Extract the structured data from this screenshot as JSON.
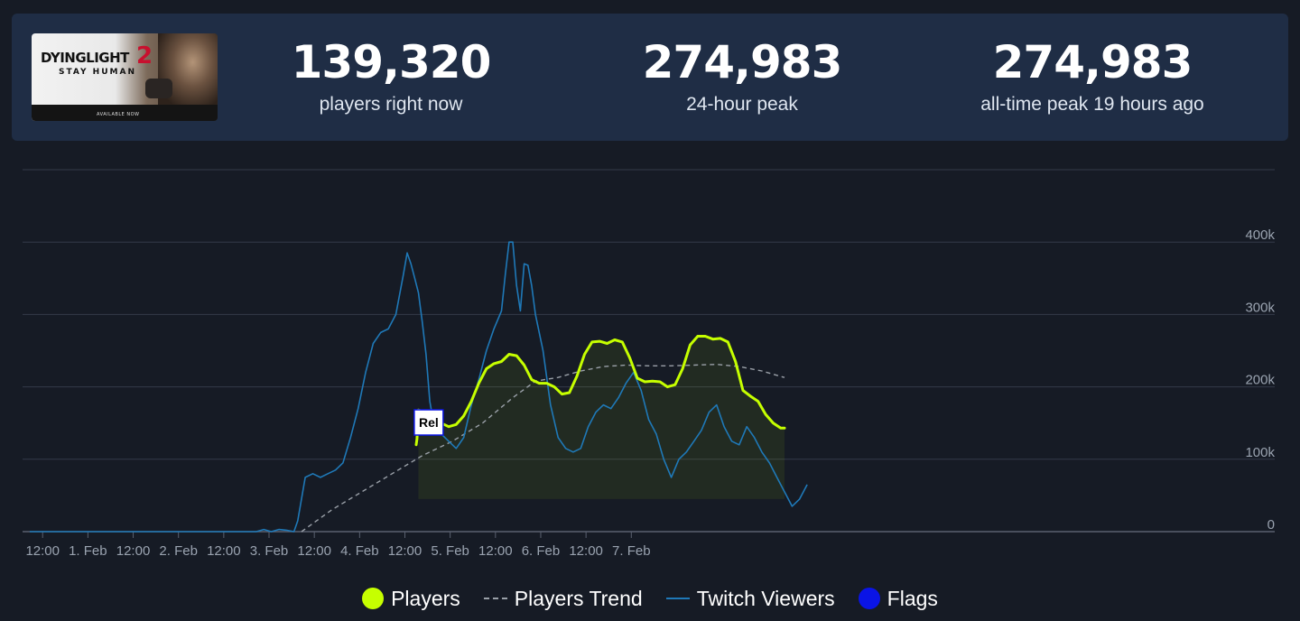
{
  "header": {
    "logo": {
      "title": "DYINGLIGHT",
      "number": "2",
      "subtitle": "STAY HUMAN",
      "availability": "AVAILABLE NOW"
    },
    "stats": [
      {
        "value": "139,320",
        "label": "players right now"
      },
      {
        "value": "274,983",
        "label": "24-hour peak"
      },
      {
        "value": "274,983",
        "label": "all-time peak 19 hours ago"
      }
    ]
  },
  "chart_data": {
    "type": "line",
    "x_ticks": [
      "12:00",
      "1. Feb",
      "12:00",
      "2. Feb",
      "12:00",
      "3. Feb",
      "12:00",
      "4. Feb",
      "12:00",
      "5. Feb",
      "12:00",
      "6. Feb",
      "12:00",
      "7. Feb"
    ],
    "y_ticks": [
      "0",
      "100k",
      "200k",
      "300k",
      "400k"
    ],
    "ylim": [
      0,
      500000
    ],
    "grid": true,
    "legend_position": "bottom",
    "x_unit": "hours since 31 Jan 00:00",
    "xlim": [
      0,
      200
    ],
    "series": [
      {
        "name": "Players",
        "color": "#c6ff00",
        "points": [
          [
            102.4,
            120000
          ],
          [
            102.6,
            128000
          ],
          [
            103,
            168000
          ],
          [
            105,
            165000
          ],
          [
            107,
            160000
          ],
          [
            109,
            150000
          ],
          [
            111,
            145000
          ],
          [
            113,
            148000
          ],
          [
            115,
            160000
          ],
          [
            117,
            180000
          ],
          [
            119,
            205000
          ],
          [
            121,
            225000
          ],
          [
            123,
            232000
          ],
          [
            125,
            235000
          ],
          [
            127,
            245000
          ],
          [
            129,
            243000
          ],
          [
            131,
            230000
          ],
          [
            133,
            210000
          ],
          [
            135,
            205000
          ],
          [
            137,
            205000
          ],
          [
            139,
            200000
          ],
          [
            141,
            190000
          ],
          [
            143,
            192000
          ],
          [
            145,
            215000
          ],
          [
            147,
            245000
          ],
          [
            149,
            262000
          ],
          [
            151,
            263000
          ],
          [
            153,
            260000
          ],
          [
            155,
            265000
          ],
          [
            157,
            262000
          ],
          [
            159,
            240000
          ],
          [
            161,
            212000
          ],
          [
            163,
            207000
          ],
          [
            165,
            208000
          ],
          [
            167,
            207000
          ],
          [
            169,
            200000
          ],
          [
            171,
            203000
          ],
          [
            173,
            225000
          ],
          [
            175,
            258000
          ],
          [
            177,
            270000
          ],
          [
            179,
            270000
          ],
          [
            181,
            266000
          ],
          [
            183,
            267000
          ],
          [
            185,
            262000
          ],
          [
            187,
            235000
          ],
          [
            189,
            195000
          ],
          [
            191,
            187000
          ],
          [
            193,
            180000
          ],
          [
            195,
            162000
          ],
          [
            197,
            150000
          ],
          [
            199,
            143000
          ],
          [
            200,
            143000
          ]
        ]
      },
      {
        "name": "Players Trend",
        "color": "#9aa0a8",
        "points": [
          [
            72,
            0
          ],
          [
            80,
            30000
          ],
          [
            88,
            55000
          ],
          [
            96,
            80000
          ],
          [
            104,
            105000
          ],
          [
            112,
            125000
          ],
          [
            120,
            150000
          ],
          [
            128,
            185000
          ],
          [
            134,
            208000
          ],
          [
            140,
            213000
          ],
          [
            146,
            222000
          ],
          [
            152,
            228000
          ],
          [
            158,
            230000
          ],
          [
            164,
            229000
          ],
          [
            170,
            229000
          ],
          [
            176,
            230000
          ],
          [
            182,
            231000
          ],
          [
            188,
            228000
          ],
          [
            194,
            222000
          ],
          [
            200,
            213000
          ]
        ]
      },
      {
        "name": "Twitch Viewers",
        "color": "#1f79b8",
        "points": [
          [
            0,
            0
          ],
          [
            60,
            0
          ],
          [
            62,
            3000
          ],
          [
            64,
            0
          ],
          [
            66,
            3000
          ],
          [
            68,
            2000
          ],
          [
            70,
            0
          ],
          [
            71,
            15000
          ],
          [
            73,
            75000
          ],
          [
            75,
            80000
          ],
          [
            77,
            75000
          ],
          [
            79,
            80000
          ],
          [
            81,
            85000
          ],
          [
            83,
            95000
          ],
          [
            85,
            130000
          ],
          [
            87,
            170000
          ],
          [
            89,
            220000
          ],
          [
            91,
            260000
          ],
          [
            93,
            275000
          ],
          [
            95,
            280000
          ],
          [
            97,
            300000
          ],
          [
            99,
            355000
          ],
          [
            100,
            385000
          ],
          [
            101,
            370000
          ],
          [
            102,
            350000
          ],
          [
            103,
            330000
          ],
          [
            104,
            290000
          ],
          [
            105,
            245000
          ],
          [
            106,
            180000
          ],
          [
            107,
            150000
          ],
          [
            109,
            135000
          ],
          [
            111,
            125000
          ],
          [
            113,
            115000
          ],
          [
            115,
            130000
          ],
          [
            117,
            175000
          ],
          [
            119,
            210000
          ],
          [
            121,
            250000
          ],
          [
            123,
            280000
          ],
          [
            125,
            305000
          ],
          [
            126,
            355000
          ],
          [
            127,
            400000
          ],
          [
            128,
            400000
          ],
          [
            129,
            340000
          ],
          [
            130,
            305000
          ],
          [
            131,
            370000
          ],
          [
            132,
            368000
          ],
          [
            133,
            340000
          ],
          [
            134,
            300000
          ],
          [
            136,
            250000
          ],
          [
            138,
            175000
          ],
          [
            140,
            130000
          ],
          [
            142,
            115000
          ],
          [
            144,
            110000
          ],
          [
            146,
            115000
          ],
          [
            148,
            145000
          ],
          [
            150,
            165000
          ],
          [
            152,
            175000
          ],
          [
            154,
            170000
          ],
          [
            156,
            185000
          ],
          [
            158,
            205000
          ],
          [
            160,
            220000
          ],
          [
            162,
            195000
          ],
          [
            164,
            155000
          ],
          [
            166,
            135000
          ],
          [
            168,
            100000
          ],
          [
            170,
            75000
          ],
          [
            172,
            100000
          ],
          [
            174,
            110000
          ],
          [
            176,
            125000
          ],
          [
            178,
            140000
          ],
          [
            180,
            165000
          ],
          [
            182,
            175000
          ],
          [
            184,
            145000
          ],
          [
            186,
            125000
          ],
          [
            188,
            120000
          ],
          [
            190,
            145000
          ],
          [
            192,
            130000
          ],
          [
            194,
            110000
          ],
          [
            196,
            95000
          ],
          [
            198,
            75000
          ],
          [
            200,
            55000
          ],
          [
            202,
            35000
          ],
          [
            204,
            45000
          ],
          [
            206,
            65000
          ]
        ]
      }
    ],
    "flags": [
      {
        "label": "Rel",
        "x": 102.6
      }
    ],
    "legend": [
      {
        "name": "Players",
        "color": "#c6ff00",
        "style": "dot"
      },
      {
        "name": "Players Trend",
        "color": "#9aa0a8",
        "style": "dash"
      },
      {
        "name": "Twitch Viewers",
        "color": "#1f79b8",
        "style": "line"
      },
      {
        "name": "Flags",
        "color": "#0a14e6",
        "style": "dot"
      }
    ]
  }
}
